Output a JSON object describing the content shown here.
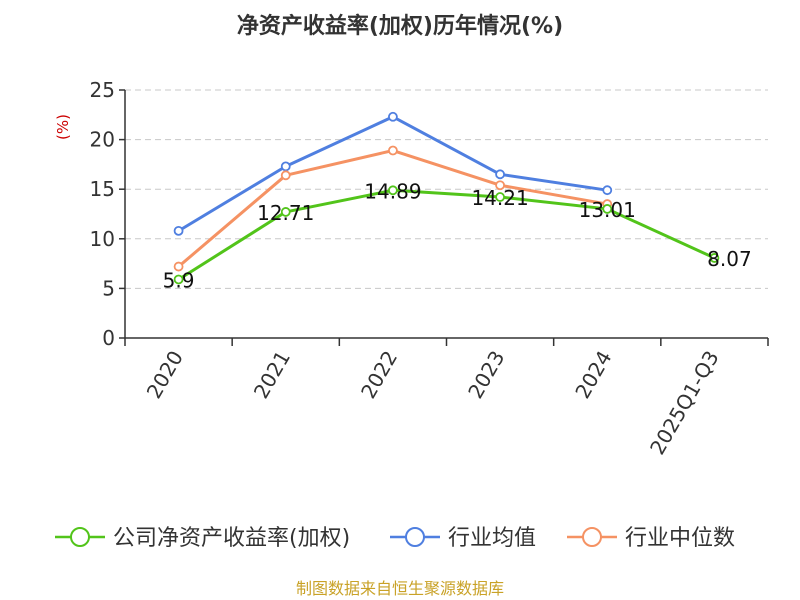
{
  "colors": {
    "company": "#52c41a",
    "industry_avg": "#4f7fe0",
    "industry_median": "#f59263",
    "axis": "#333333",
    "grid": "#c8c8c8",
    "ylabel": "#cc0000",
    "source": "#c9a227"
  },
  "chart_data": {
    "type": "line",
    "title": "净资产收益率(加权)历年情况(%)",
    "xlabel": "",
    "ylabel": "(%)",
    "categories": [
      "2020",
      "2021",
      "2022",
      "2023",
      "2024",
      "2025Q1-Q3"
    ],
    "ylim": [
      0,
      25
    ],
    "yticks": [
      0,
      5,
      10,
      15,
      20,
      25
    ],
    "grid": true,
    "legend_position": "bottom",
    "series": [
      {
        "name": "公司净资产收益率(加权)",
        "key": "company",
        "values": [
          5.9,
          12.71,
          14.89,
          14.21,
          13.01,
          8.07
        ],
        "labels": [
          "5.9",
          "12.71",
          "14.89",
          "14.21",
          "13.01",
          "8.07"
        ]
      },
      {
        "name": "行业均值",
        "key": "industry_avg",
        "values": [
          10.8,
          17.3,
          22.3,
          16.5,
          14.9,
          null
        ]
      },
      {
        "name": "行业中位数",
        "key": "industry_median",
        "values": [
          7.2,
          16.4,
          18.9,
          15.4,
          13.5,
          null
        ]
      }
    ]
  },
  "source": "制图数据来自恒生聚源数据库"
}
